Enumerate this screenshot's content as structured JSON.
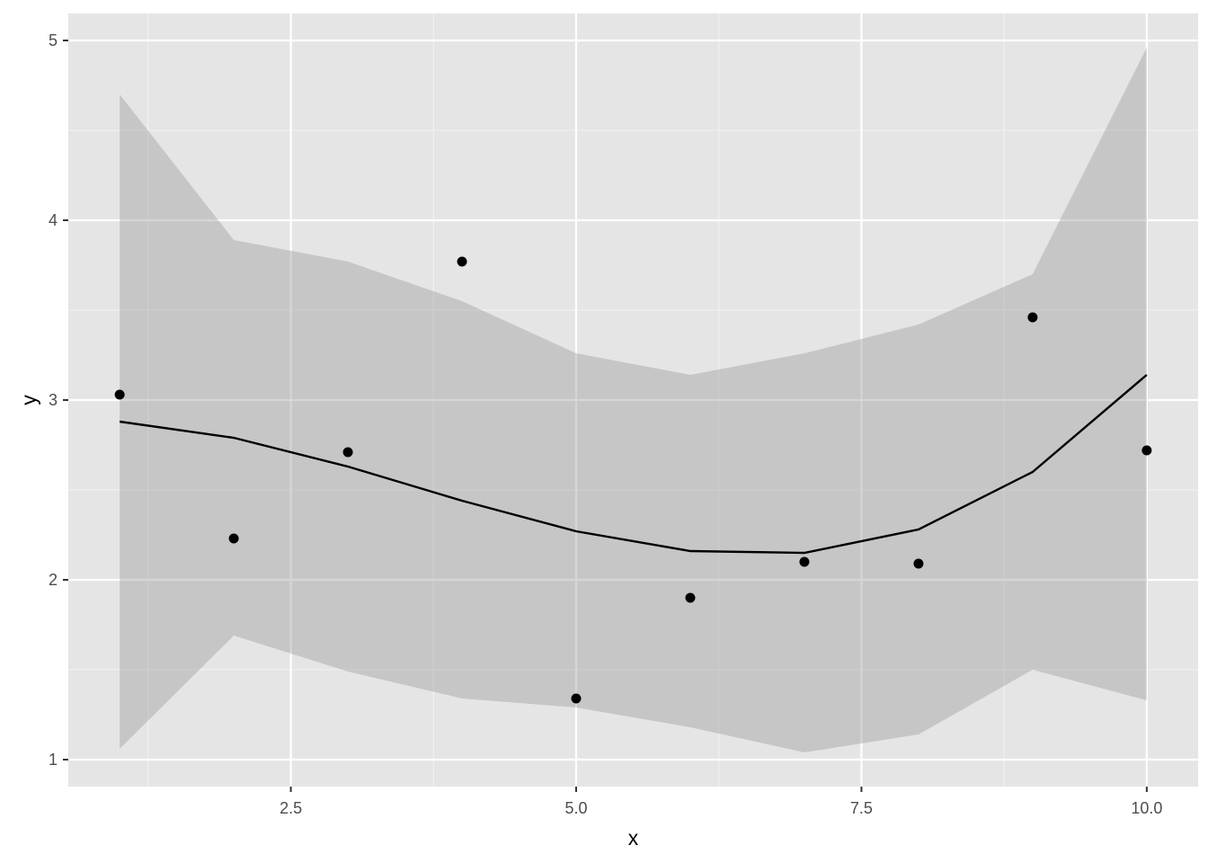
{
  "colors": {
    "panel_background": "#e5e5e5",
    "grid_major": "#ffffff",
    "grid_minor": "#f2f2f2",
    "ribbon_fill": "#999999",
    "line": "#000000",
    "points": "#000000"
  },
  "chart_data": {
    "type": "line",
    "title": "",
    "xlabel": "x",
    "ylabel": "y",
    "xlim": [
      0.55,
      10.45
    ],
    "ylim": [
      0.85,
      5.15
    ],
    "grid": true,
    "x_ticks": [
      2.5,
      5.0,
      7.5,
      10.0
    ],
    "x_tick_labels": [
      "2.5",
      "5.0",
      "7.5",
      "10.0"
    ],
    "x_minor_ticks": [
      1.25,
      3.75,
      6.25,
      8.75
    ],
    "y_ticks": [
      1,
      2,
      3,
      4,
      5
    ],
    "y_tick_labels": [
      "1",
      "2",
      "3",
      "4",
      "5"
    ],
    "y_minor_ticks": [
      1.5,
      2.5,
      3.5,
      4.5
    ],
    "points": {
      "x": [
        1,
        2,
        3,
        4,
        5,
        6,
        7,
        8,
        9,
        10
      ],
      "y": [
        3.03,
        2.23,
        2.71,
        3.77,
        1.34,
        1.9,
        2.1,
        2.09,
        3.46,
        2.72
      ]
    },
    "fit_line": {
      "x": [
        1,
        2,
        3,
        4,
        5,
        6,
        7,
        8,
        9,
        10
      ],
      "y": [
        2.88,
        2.79,
        2.63,
        2.44,
        2.27,
        2.16,
        2.15,
        2.28,
        2.6,
        3.14
      ]
    },
    "ribbon": {
      "x": [
        1,
        2,
        3,
        4,
        5,
        6,
        7,
        8,
        9,
        10
      ],
      "upper": [
        4.7,
        3.89,
        3.77,
        3.55,
        3.26,
        3.14,
        3.26,
        3.42,
        3.7,
        4.96
      ],
      "lower": [
        1.06,
        1.69,
        1.49,
        1.34,
        1.29,
        1.18,
        1.04,
        1.14,
        1.5,
        1.33
      ]
    }
  }
}
